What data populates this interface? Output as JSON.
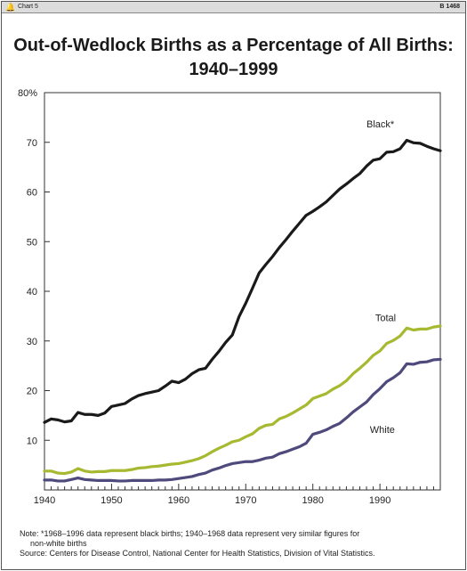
{
  "header": {
    "chart_label": "Chart 5",
    "code": "B 1468",
    "icon": "bell-icon"
  },
  "title_line1": "Out-of-Wedlock Births as a Percentage of All Births:",
  "title_line2": "1940–1999",
  "notes": {
    "note_line1": "Note: *1968–1996 data represent black births; 1940–1968 data represent very similar figures for",
    "note_line2": "non-white births",
    "source": "Source: Centers for Disease Control, National Center for Health Statistics, Division of Vital Statistics."
  },
  "chart_data": {
    "type": "line",
    "title": "Out-of-Wedlock Births as a Percentage of All Births: 1940–1999",
    "xlabel": "",
    "ylabel": "",
    "xlim": [
      1940,
      1999
    ],
    "ylim": [
      0,
      80
    ],
    "x_ticks": [
      "1940",
      "1950",
      "1960",
      "1970",
      "1980",
      "1990"
    ],
    "y_ticks": [
      "",
      "10",
      "20",
      "30",
      "40",
      "50",
      "60",
      "70",
      "80%"
    ],
    "grid": false,
    "legend": "labels on lines",
    "x": [
      1940,
      1941,
      1942,
      1943,
      1944,
      1945,
      1946,
      1947,
      1948,
      1949,
      1950,
      1951,
      1952,
      1953,
      1954,
      1955,
      1956,
      1957,
      1958,
      1959,
      1960,
      1961,
      1962,
      1963,
      1964,
      1965,
      1966,
      1967,
      1968,
      1969,
      1970,
      1971,
      1972,
      1973,
      1974,
      1975,
      1976,
      1977,
      1978,
      1979,
      1980,
      1981,
      1982,
      1983,
      1984,
      1985,
      1986,
      1987,
      1988,
      1989,
      1990,
      1991,
      1992,
      1993,
      1994,
      1995,
      1996,
      1997,
      1998,
      1999
    ],
    "series": [
      {
        "name": "Black*",
        "color": "#1a1a1a",
        "values": [
          13.6,
          14.3,
          14.1,
          13.7,
          13.9,
          15.6,
          15.2,
          15.2,
          15.0,
          15.5,
          16.8,
          17.1,
          17.4,
          18.3,
          19.0,
          19.4,
          19.7,
          20.0,
          20.9,
          21.9,
          21.6,
          22.3,
          23.4,
          24.2,
          24.5,
          26.3,
          27.9,
          29.7,
          31.2,
          34.9,
          37.6,
          40.6,
          43.7,
          45.4,
          47.0,
          48.8,
          50.4,
          52.1,
          53.7,
          55.3,
          56.1,
          57.0,
          58.0,
          59.3,
          60.6,
          61.6,
          62.7,
          63.7,
          65.2,
          66.4,
          66.7,
          68.0,
          68.1,
          68.7,
          70.4,
          69.9,
          69.8,
          69.2,
          68.7,
          68.3
        ]
      },
      {
        "name": "Total",
        "color": "#a7b930",
        "values": [
          3.8,
          3.8,
          3.4,
          3.3,
          3.6,
          4.3,
          3.8,
          3.6,
          3.7,
          3.7,
          3.9,
          3.9,
          3.9,
          4.1,
          4.4,
          4.5,
          4.7,
          4.8,
          5.0,
          5.2,
          5.3,
          5.6,
          5.9,
          6.3,
          6.9,
          7.7,
          8.4,
          9.0,
          9.7,
          10.0,
          10.7,
          11.3,
          12.4,
          13.0,
          13.2,
          14.3,
          14.8,
          15.5,
          16.3,
          17.1,
          18.4,
          18.9,
          19.4,
          20.3,
          21.0,
          22.0,
          23.4,
          24.5,
          25.7,
          27.1,
          28.0,
          29.5,
          30.1,
          31.0,
          32.6,
          32.2,
          32.4,
          32.4,
          32.8,
          33.0
        ]
      },
      {
        "name": "White",
        "color": "#4e4a7c",
        "values": [
          2.0,
          2.0,
          1.8,
          1.8,
          2.1,
          2.4,
          2.1,
          2.0,
          1.9,
          1.9,
          1.9,
          1.8,
          1.8,
          1.9,
          1.9,
          1.9,
          1.9,
          2.0,
          2.0,
          2.1,
          2.3,
          2.5,
          2.7,
          3.1,
          3.4,
          4.0,
          4.4,
          4.9,
          5.3,
          5.5,
          5.7,
          5.7,
          6.0,
          6.4,
          6.6,
          7.3,
          7.7,
          8.2,
          8.7,
          9.4,
          11.2,
          11.6,
          12.1,
          12.8,
          13.4,
          14.5,
          15.7,
          16.7,
          17.7,
          19.2,
          20.4,
          21.8,
          22.6,
          23.6,
          25.4,
          25.3,
          25.7,
          25.8,
          26.2,
          26.3
        ]
      }
    ]
  }
}
